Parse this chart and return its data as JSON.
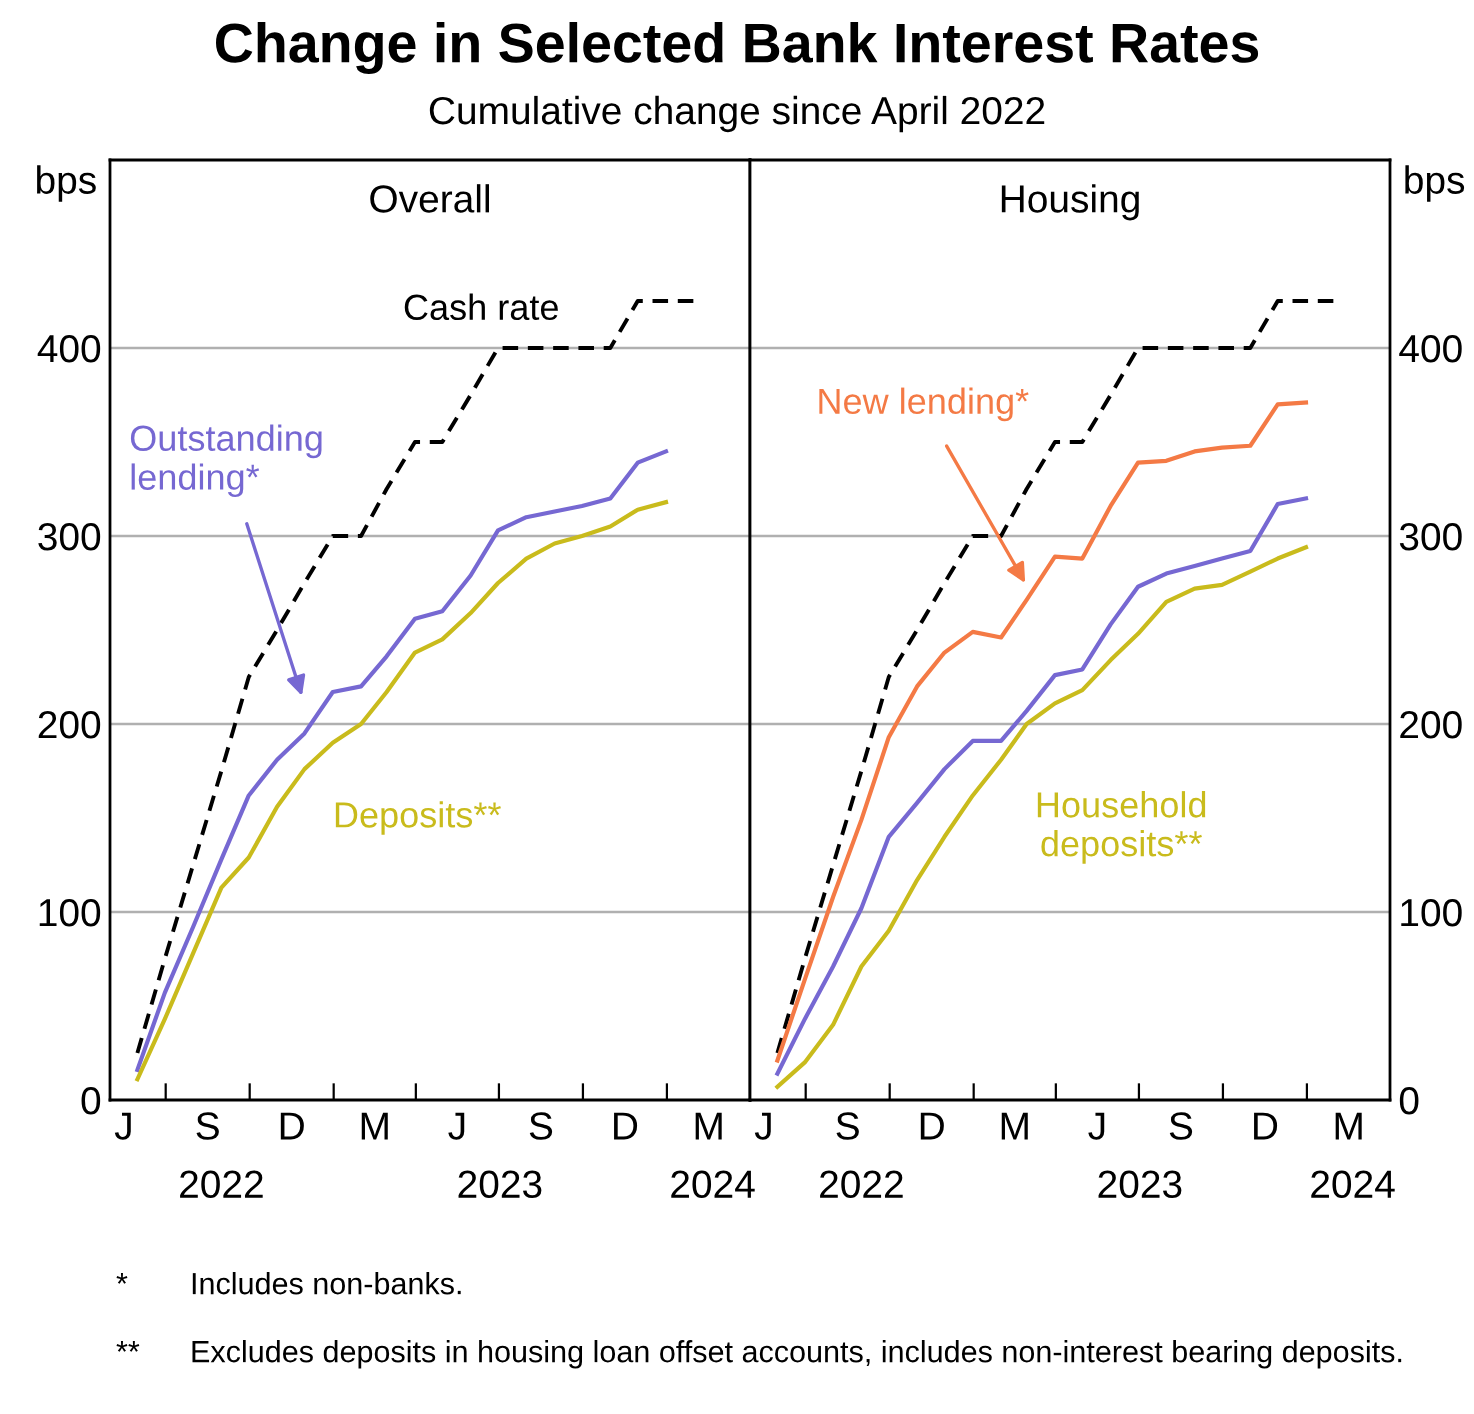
{
  "chart_data": [
    {
      "type": "line",
      "title": "Change in Selected Bank Interest Rates",
      "subtitle": "Cumulative change since April 2022",
      "ylabel": "bps",
      "annotations": [
        "Overall",
        "J",
        "S",
        "D",
        "M",
        "J",
        "S",
        "D",
        "M",
        "* Includes non-banks.",
        "** Excludes deposits in housing loan offset accounts, includes non-interest bearing deposits."
      ],
      "xlim": [
        "2022-05-01",
        "2024-04-01"
      ],
      "ylim": [
        0,
        500
      ],
      "yticks": [
        0,
        100,
        200,
        300,
        400
      ],
      "grid": "y",
      "xticks": [
        {
          "value": "2022-07-01",
          "label": null
        },
        {
          "value": "2022-10-01",
          "label": null
        },
        {
          "value": "2023-01-01",
          "label": null
        },
        {
          "value": "2023-04-01",
          "label": null
        },
        {
          "value": "2023-07-01",
          "label": null
        },
        {
          "value": "2023-10-01",
          "label": null
        },
        {
          "value": "2024-01-01",
          "label": null
        },
        {
          "value": "2022-08-31",
          "label": "2022"
        },
        {
          "value": "2023-07-02",
          "label": "2023"
        },
        {
          "value": "2024-02-20",
          "label": "2024"
        }
      ],
      "x": [
        "2022-05-31",
        "2022-06-30",
        "2022-07-31",
        "2022-08-31",
        "2022-09-30",
        "2022-10-31",
        "2022-11-30",
        "2022-12-31",
        "2023-01-31",
        "2023-02-28",
        "2023-03-31",
        "2023-04-30",
        "2023-05-31",
        "2023-06-30",
        "2023-07-31",
        "2023-08-31",
        "2023-09-30",
        "2023-10-31",
        "2023-11-30",
        "2023-12-31"
      ],
      "series": [
        {
          "name": "Cash rate",
          "color": "#000000",
          "line_style": "dashed",
          "x": [
            "2022-05-31",
            "2022-06-30",
            "2022-07-31",
            "2022-08-31",
            "2022-09-30",
            "2022-10-31",
            "2022-11-30",
            "2022-12-31",
            "2023-01-31",
            "2023-02-28",
            "2023-03-31",
            "2023-04-30",
            "2023-05-31",
            "2023-06-30",
            "2023-07-31",
            "2023-08-31",
            "2023-09-30",
            "2023-10-31",
            "2023-11-30",
            "2023-12-31",
            "2024-01-31"
          ],
          "values": [
            25,
            75,
            125,
            175,
            225,
            250,
            275,
            300,
            300,
            325,
            350,
            350,
            375,
            400,
            400,
            400,
            400,
            400,
            425,
            425,
            425
          ]
        },
        {
          "name": "Outstanding\nlending*",
          "color": "#7668d2",
          "line_style": "solid",
          "values": [
            16,
            57,
            92,
            128,
            162,
            181,
            195,
            217,
            220,
            236,
            256,
            260,
            279,
            303,
            310,
            313,
            316,
            320,
            339,
            345
          ]
        },
        {
          "name": "Deposits**",
          "color": "#c9bb1c",
          "line_style": "solid",
          "values": [
            11,
            43,
            78,
            113,
            129,
            156,
            176,
            190,
            200,
            217,
            238,
            245,
            259,
            275,
            288,
            296,
            300,
            305,
            314,
            318
          ]
        }
      ]
    },
    {
      "type": "line",
      "ylabel": "bps",
      "annotations": [
        "Housing",
        "J",
        "S",
        "D",
        "M",
        "J",
        "S",
        "D",
        "M"
      ],
      "xlim": [
        "2022-05-01",
        "2024-04-01"
      ],
      "ylim": [
        0,
        500
      ],
      "yticks": [
        0,
        100,
        200,
        300,
        400
      ],
      "grid": "y",
      "xticks": [
        {
          "value": "2022-07-01",
          "label": null
        },
        {
          "value": "2022-10-01",
          "label": null
        },
        {
          "value": "2023-01-01",
          "label": null
        },
        {
          "value": "2023-04-01",
          "label": null
        },
        {
          "value": "2023-07-01",
          "label": null
        },
        {
          "value": "2023-10-01",
          "label": null
        },
        {
          "value": "2024-01-01",
          "label": null
        },
        {
          "value": "2022-08-31",
          "label": "2022"
        },
        {
          "value": "2023-07-02",
          "label": "2023"
        },
        {
          "value": "2024-02-20",
          "label": "2024"
        }
      ],
      "x": [
        "2022-05-31",
        "2022-06-30",
        "2022-07-31",
        "2022-08-31",
        "2022-09-30",
        "2022-10-31",
        "2022-11-30",
        "2022-12-31",
        "2023-01-31",
        "2023-02-28",
        "2023-03-31",
        "2023-04-30",
        "2023-05-31",
        "2023-06-30",
        "2023-07-31",
        "2023-08-31",
        "2023-09-30",
        "2023-10-31",
        "2023-11-30",
        "2023-12-31"
      ],
      "series": [
        {
          "color": "#000000",
          "line_style": "dashed",
          "x": [
            "2022-05-31",
            "2022-06-30",
            "2022-07-31",
            "2022-08-31",
            "2022-09-30",
            "2022-10-31",
            "2022-11-30",
            "2022-12-31",
            "2023-01-31",
            "2023-02-28",
            "2023-03-31",
            "2023-04-30",
            "2023-05-31",
            "2023-06-30",
            "2023-07-31",
            "2023-08-31",
            "2023-09-30",
            "2023-10-31",
            "2023-11-30",
            "2023-12-31",
            "2024-01-31"
          ],
          "values": [
            25,
            75,
            125,
            175,
            225,
            250,
            275,
            300,
            300,
            325,
            350,
            350,
            375,
            400,
            400,
            400,
            400,
            400,
            425,
            425,
            425
          ]
        },
        {
          "name": "New lending*",
          "color": "#f47a45",
          "line_style": "solid",
          "values": [
            21,
            64,
            108,
            149,
            193,
            220,
            238,
            249,
            246,
            266,
            289,
            288,
            316,
            339,
            340,
            345,
            347,
            348,
            370,
            371
          ]
        },
        {
          "color": "#7668d2",
          "line_style": "solid",
          "values": [
            14,
            43,
            71,
            102,
            140,
            158,
            176,
            191,
            191,
            207,
            226,
            229,
            253,
            273,
            280,
            284,
            288,
            292,
            317,
            320
          ]
        },
        {
          "name": "Household\ndeposits**",
          "color": "#c9bb1c",
          "line_style": "solid",
          "values": [
            7,
            20,
            40,
            71,
            90,
            117,
            140,
            162,
            181,
            200,
            211,
            218,
            234,
            248,
            265,
            272,
            274,
            281,
            288,
            294
          ]
        }
      ]
    }
  ]
}
